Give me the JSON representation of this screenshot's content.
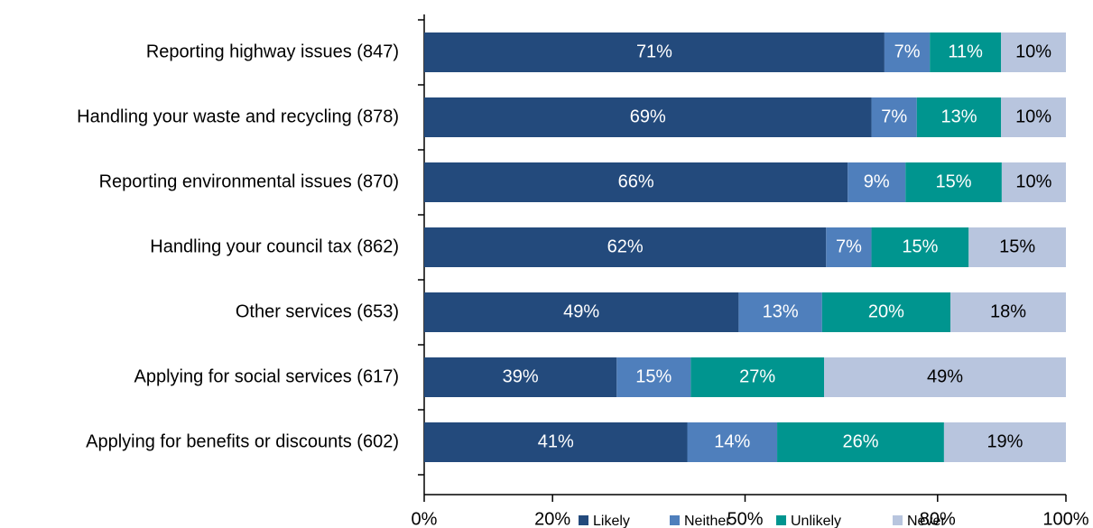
{
  "chart_data": {
    "type": "bar",
    "orientation": "horizontal",
    "stacking": "percent",
    "categories": [
      "Reporting highway issues (847)",
      "Handling your waste and recycling (878)",
      "Reporting environmental issues (870)",
      "Handling your council tax (862)",
      "Other services (653)",
      "Applying for social services (617)",
      "Applying for benefits or discounts (602)"
    ],
    "series": [
      {
        "name": "Likely",
        "color": "#234a7c",
        "label_color": "#ffffff",
        "values": [
          71,
          69,
          66,
          62,
          49,
          39,
          41
        ],
        "value_labels": [
          "71%",
          "69%",
          "66%",
          "62%",
          "49%",
          "39%",
          "41%"
        ]
      },
      {
        "name": "Neither",
        "color": "#4f7fbc",
        "label_color": "#ffffff",
        "values": [
          7,
          7,
          9,
          7,
          13,
          15,
          14
        ],
        "value_labels": [
          "7%",
          "7%",
          "9%",
          "7%",
          "13%",
          "15%",
          "14%"
        ]
      },
      {
        "name": "Unlikely",
        "color": "#00958f",
        "label_color": "#ffffff",
        "values": [
          11,
          13,
          15,
          15,
          20,
          27,
          26
        ],
        "value_labels": [
          "11%",
          "13%",
          "15%",
          "15%",
          "20%",
          "27%",
          "26%"
        ]
      },
      {
        "name": "Never",
        "color": "#b8c5de",
        "label_color": "#000000",
        "values": [
          10,
          10,
          10,
          15,
          18,
          49,
          19
        ],
        "value_labels": [
          "10%",
          "10%",
          "10%",
          "15%",
          "18%",
          "49%",
          "19%"
        ]
      }
    ],
    "xlim": [
      0,
      100
    ],
    "xticks": [
      {
        "value": 0,
        "label": "0%"
      },
      {
        "value": 20,
        "label": "20%"
      },
      {
        "value": 50,
        "label": "50%"
      },
      {
        "value": 80,
        "label": "80%"
      },
      {
        "value": 100,
        "label": "100%"
      }
    ],
    "legend": "bottom"
  }
}
